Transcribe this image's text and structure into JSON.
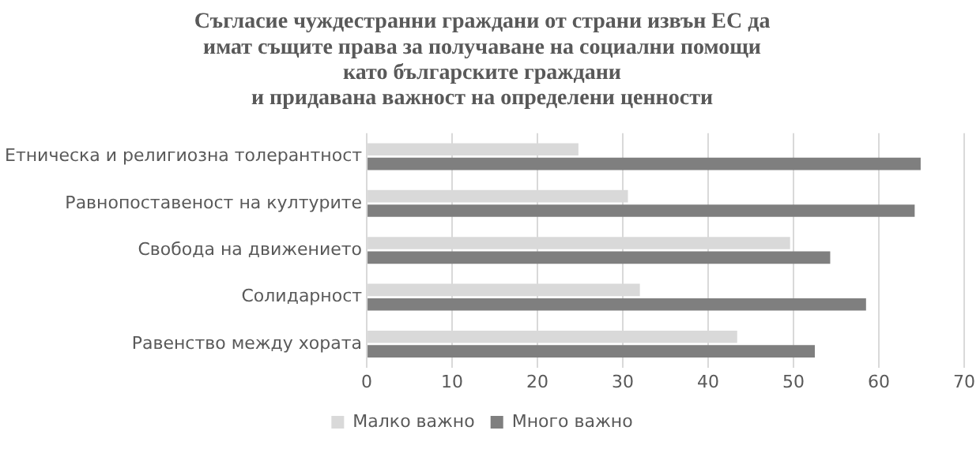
{
  "chart_data": {
    "type": "bar",
    "orientation": "horizontal",
    "title": "Съгласие чуждестранни граждани от страни извън ЕС да\nимат същите права за получаване на социални помощи\nкато българските граждани\nи придавана важност на определени ценности",
    "categories": [
      "Етническа и религиозна толерантност",
      "Равнопоставеност на културите",
      "Свобода на движението",
      "Солидарност",
      "Равенство между хората"
    ],
    "series": [
      {
        "name": "Малко важно",
        "color": "#d9d9d9",
        "values": [
          24.8,
          30.6,
          49.6,
          32,
          43.4
        ]
      },
      {
        "name": "Много важно",
        "color": "#7f7f7f",
        "values": [
          64.9,
          64.2,
          54.3,
          58.5,
          52.5
        ]
      }
    ],
    "xlim": [
      0,
      70
    ],
    "xticks": [
      0,
      10,
      20,
      30,
      40,
      50,
      60,
      70
    ],
    "grid": "x",
    "legend": "bottom"
  }
}
